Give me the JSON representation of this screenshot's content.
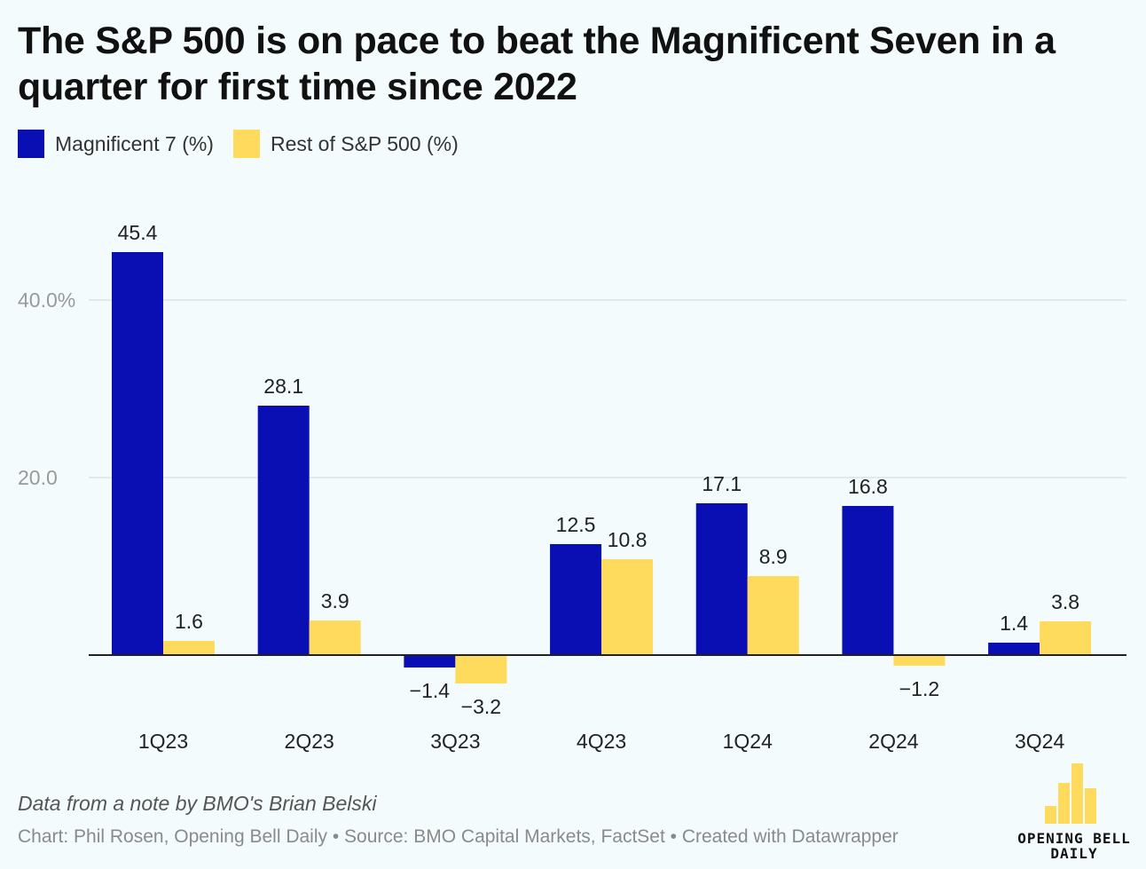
{
  "colors": {
    "magnificent7": "#0a0fb4",
    "rest": "#fedb5c",
    "grid": "#dde4e6",
    "axis_label": "#9a9a9a",
    "baseline": "#222222",
    "logo": "#fedb5c"
  },
  "header": {
    "title": "The S&P 500 is on pace to beat the Magnificent Seven in a quarter for first time since 2022"
  },
  "legend": [
    {
      "label": "Magnificent 7 (%)",
      "color": "#0a0fb4"
    },
    {
      "label": "Rest of S&P 500 (%)",
      "color": "#fedb5c"
    }
  ],
  "chart_data": {
    "type": "bar",
    "title": "The S&P 500 is on pace to beat the Magnificent Seven in a quarter for first time since 2022",
    "xlabel": "",
    "ylabel": "",
    "categories": [
      "1Q23",
      "2Q23",
      "3Q23",
      "4Q23",
      "1Q24",
      "2Q24",
      "3Q24"
    ],
    "series": [
      {
        "name": "Magnificent 7 (%)",
        "color": "#0a0fb4",
        "values": [
          45.4,
          28.1,
          -1.4,
          12.5,
          17.1,
          16.8,
          1.4
        ]
      },
      {
        "name": "Rest of S&P 500 (%)",
        "color": "#fedb5c",
        "values": [
          1.6,
          3.9,
          -3.2,
          10.8,
          8.9,
          -1.2,
          3.8
        ]
      }
    ],
    "data_labels": [
      [
        "45.4",
        "28.1",
        "−1.4",
        "12.5",
        "17.1",
        "16.8",
        "1.4"
      ],
      [
        "1.6",
        "3.9",
        "−3.2",
        "10.8",
        "8.9",
        "−1.2",
        "3.8"
      ]
    ],
    "ylim": [
      -5,
      60
    ],
    "yticks": [
      {
        "value": 20,
        "label": "20.0"
      },
      {
        "value": 40,
        "label": "40.0%"
      }
    ],
    "grid": true,
    "legend_position": "top-left"
  },
  "footer": {
    "note": "Data from a note by BMO's Brian Belski",
    "source": "Chart: Phil Rosen, Opening Bell Daily • Source: BMO Capital Markets, FactSet • Created with Datawrapper"
  },
  "logo": {
    "line1": "OPENING BELL",
    "line2": "DAILY"
  }
}
